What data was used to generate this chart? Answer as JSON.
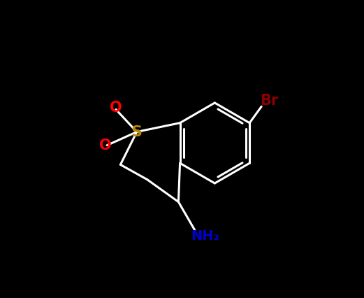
{
  "background_color": "#000000",
  "bond_color": "#ffffff",
  "atom_colors": {
    "O": "#ff0000",
    "S": "#b8860b",
    "Br": "#8b0000",
    "N": "#0000cd",
    "C": "#ffffff"
  },
  "figsize": [
    5.21,
    4.26
  ],
  "dpi": 100
}
